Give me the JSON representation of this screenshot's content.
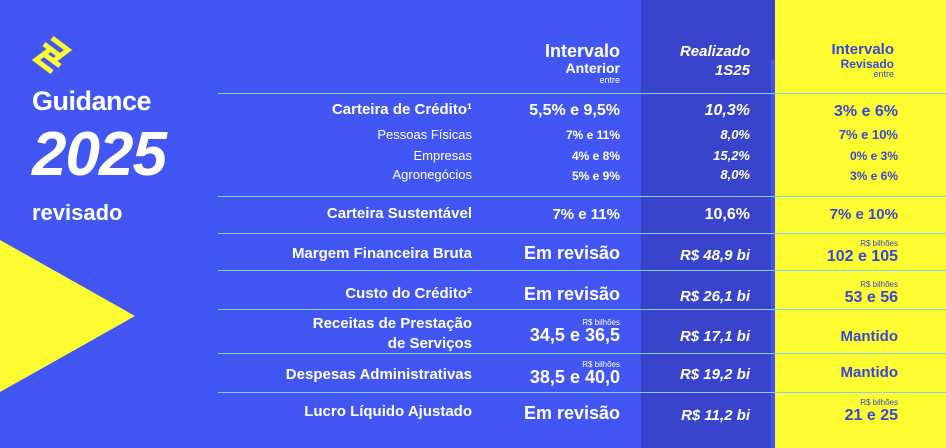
{
  "brand": {
    "line1": "Guidance",
    "line2": "2025",
    "line3": "revisado",
    "logo_icon": "bb-logo-icon"
  },
  "colors": {
    "background": "#4256f4",
    "dark_band": "#3a43cc",
    "yellow": "#fcfc30",
    "separator": "#7fd0f5",
    "yellow_text": "#3b49d0"
  },
  "header": {
    "col_prev_1": "Intervalo",
    "col_prev_2": "Anterior",
    "col_prev_3": "entre",
    "col_real_1": "Realizado",
    "col_real_2": "1S25",
    "col_rev_1": "Intervalo",
    "col_rev_2": "Revisado",
    "col_rev_3": "entre"
  },
  "rows": {
    "credito": {
      "label": "Carteira de Crédito¹",
      "prev": "5,5% e 9,5%",
      "real": "10,3%",
      "rev": "3% e 6%"
    },
    "pf": {
      "label": "Pessoas Físicas",
      "prev": "7% e 11%",
      "real": "8,0%",
      "rev": "7% e 10%"
    },
    "emp": {
      "label": "Empresas",
      "prev": "4% e 8%",
      "real": "15,2%",
      "rev": "0% e 3%"
    },
    "agro": {
      "label": "Agronegócios",
      "prev": "5% e 9%",
      "real": "8,0%",
      "rev": "3% e 6%"
    },
    "sust": {
      "label": "Carteira Sustentável",
      "prev": "7% e 11%",
      "real": "10,6%",
      "rev": "7% e 10%"
    },
    "margem": {
      "label": "Margem Financeira Bruta",
      "prev": "Em revisão",
      "real": "R$ 48,9 bi",
      "rev_unit": "R$ bilhões",
      "rev": "102 e 105"
    },
    "custo": {
      "label": "Custo do Crédito²",
      "prev": "Em revisão",
      "real": "R$ 26,1 bi",
      "rev_unit": "R$ bilhões",
      "rev": "53 e 56"
    },
    "receitas": {
      "label1": "Receitas de Prestação",
      "label2": "de Serviços",
      "prev_unit": "R$ bilhões",
      "prev": "34,5 e 36,5",
      "real": "R$ 17,1 bi",
      "rev": "Mantido"
    },
    "despesas": {
      "label": "Despesas Administrativas",
      "prev_unit": "R$ bilhões",
      "prev": "38,5 e 40,0",
      "real": "R$ 19,2 bi",
      "rev": "Mantido"
    },
    "lucro": {
      "label": "Lucro Líquido Ajustado",
      "prev": "Em revisão",
      "real": "R$ 11,2 bi",
      "rev_unit": "R$ bilhões",
      "rev": "21 e 25"
    }
  }
}
